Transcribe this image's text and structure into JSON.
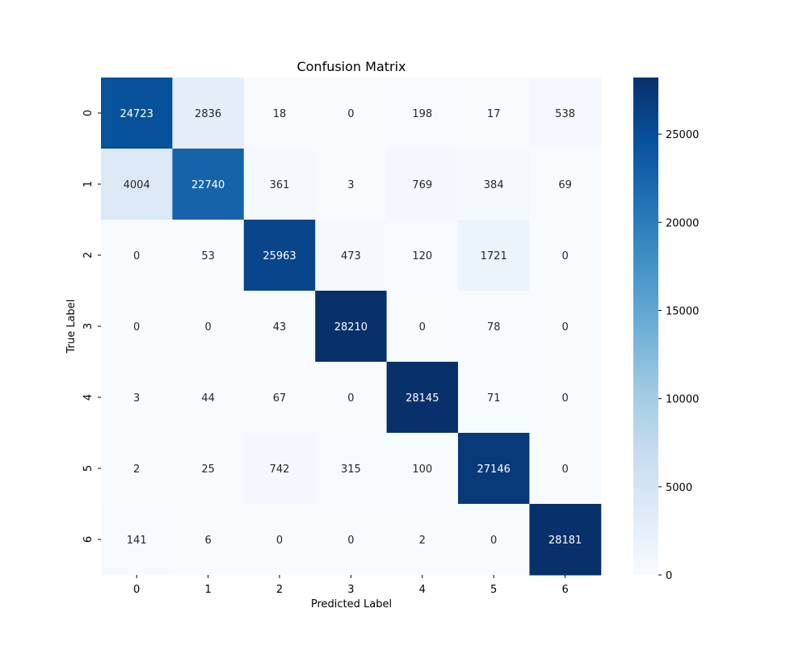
{
  "chart_data": {
    "type": "heatmap",
    "title": "Confusion Matrix",
    "xlabel": "Predicted Label",
    "ylabel": "True Label",
    "x_categories": [
      "0",
      "1",
      "2",
      "3",
      "4",
      "5",
      "6"
    ],
    "y_categories": [
      "0",
      "1",
      "2",
      "3",
      "4",
      "5",
      "6"
    ],
    "values": [
      [
        24723,
        2836,
        18,
        0,
        198,
        17,
        538
      ],
      [
        4004,
        22740,
        361,
        3,
        769,
        384,
        69
      ],
      [
        0,
        53,
        25963,
        473,
        120,
        1721,
        0
      ],
      [
        0,
        0,
        43,
        28210,
        0,
        78,
        0
      ],
      [
        3,
        44,
        67,
        0,
        28145,
        71,
        0
      ],
      [
        2,
        25,
        742,
        315,
        100,
        27146,
        0
      ],
      [
        141,
        6,
        0,
        0,
        2,
        0,
        28181
      ]
    ],
    "colormap": "Blues",
    "colormap_stops": [
      "#f7fbff",
      "#deebf7",
      "#c6dbef",
      "#9ecae1",
      "#6baed6",
      "#4292c6",
      "#2171b5",
      "#08519c",
      "#08306b"
    ],
    "colorbar": {
      "min": 0,
      "max": 28210,
      "ticks": [
        0,
        5000,
        10000,
        15000,
        20000,
        25000
      ]
    },
    "annotation_text_colors": {
      "light_bg": "#262626",
      "dark_bg": "#ffffff"
    }
  }
}
